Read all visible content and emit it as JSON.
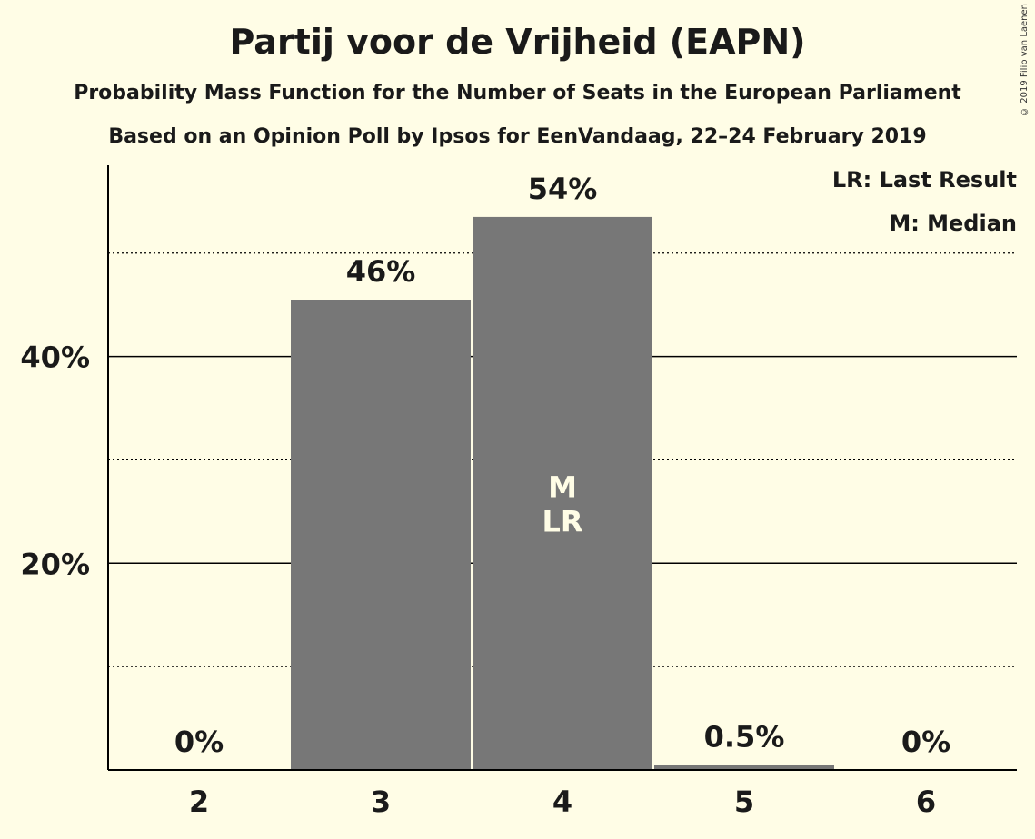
{
  "chart_data": {
    "type": "bar",
    "title": "Partij voor de Vrijheid (EAPN)",
    "subtitle": "Probability Mass Function for the Number of Seats in the European Parliament",
    "subtitle2": "Based on an Opinion Poll by Ipsos for EenVandaag, 22–24 February 2019",
    "copyright": "© 2019 Filip van Laenen",
    "categories": [
      "2",
      "3",
      "4",
      "5",
      "6"
    ],
    "values": [
      0,
      45.5,
      53.5,
      0.5,
      0
    ],
    "value_labels": [
      "0%",
      "46%",
      "54%",
      "0.5%",
      "0%"
    ],
    "ylim": [
      0,
      58.5
    ],
    "yticks": [
      {
        "value": 20,
        "label": "20%"
      },
      {
        "value": 40,
        "label": "40%"
      }
    ],
    "minor_gridlines": [
      10,
      30,
      50
    ],
    "bar_color": "#777777",
    "background": "#fffde6",
    "markers": [
      {
        "category": "4",
        "lines": [
          "M",
          "LR"
        ]
      }
    ],
    "legend": [
      "LR: Last Result",
      "M: Median"
    ],
    "legend_position": "top-right"
  }
}
